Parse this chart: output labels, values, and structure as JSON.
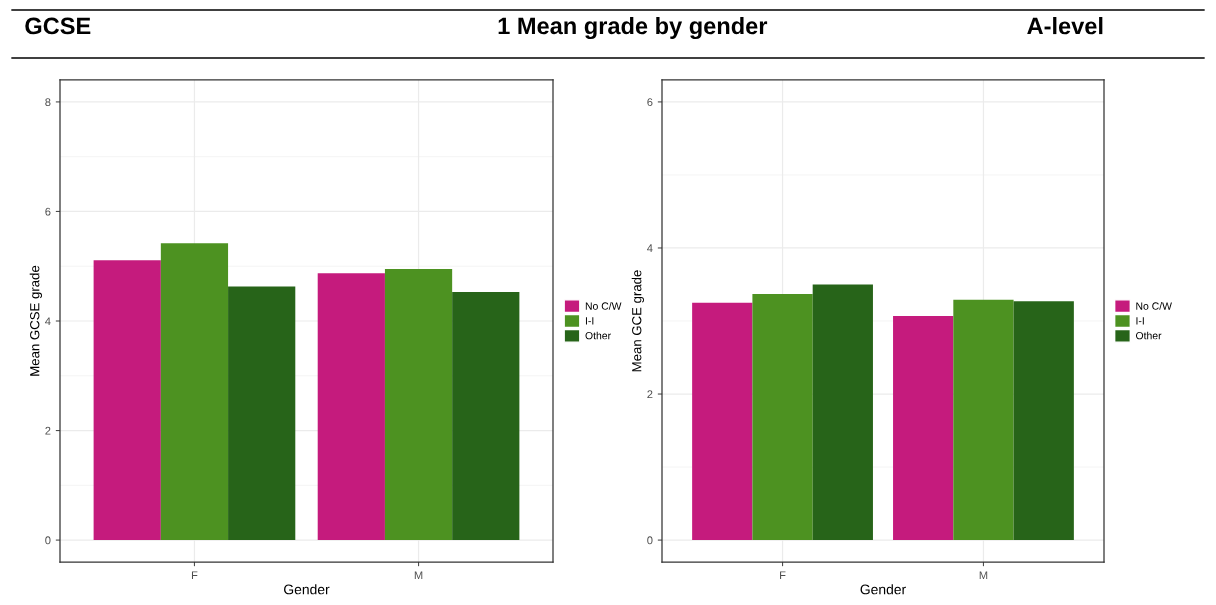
{
  "chart_data": [
    {
      "type": "bar",
      "title": "GCSE",
      "annotations": [
        "1 Mean grade by gender"
      ],
      "xlabel": "Gender",
      "ylabel": "Mean GCSE grade",
      "categories": [
        "F",
        "M"
      ],
      "series": [
        {
          "name": "No C/W",
          "color": "#c51b7d",
          "values": [
            5.11,
            4.87
          ]
        },
        {
          "name": "I-I",
          "color": "#4d9221",
          "values": [
            5.42,
            4.95
          ]
        },
        {
          "name": "Other",
          "color": "#276419",
          "values": [
            4.63,
            4.53
          ]
        }
      ],
      "ylim": [
        -0.4,
        8.4
      ],
      "yticks": [
        0,
        2,
        4,
        6,
        8
      ],
      "grid": true,
      "legend": "right"
    },
    {
      "type": "bar",
      "title": "A-level",
      "xlabel": "Gender",
      "ylabel": "Mean GCE grade",
      "categories": [
        "F",
        "M"
      ],
      "series": [
        {
          "name": "No C/W",
          "color": "#c51b7d",
          "values": [
            3.25,
            3.07
          ]
        },
        {
          "name": "I-I",
          "color": "#4d9221",
          "values": [
            3.37,
            3.29
          ]
        },
        {
          "name": "Other",
          "color": "#276419",
          "values": [
            3.5,
            3.27
          ]
        }
      ],
      "ylim": [
        -0.3,
        6.3
      ],
      "yticks": [
        0,
        2,
        4,
        6
      ],
      "grid": true,
      "legend": "right"
    }
  ]
}
